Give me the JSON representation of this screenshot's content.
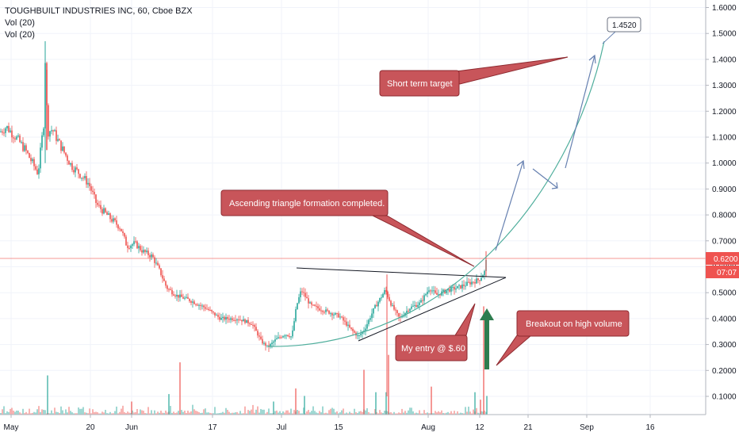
{
  "legend": {
    "symbol": "TOUGHBUILT INDUSTRIES INC, 60, Cboe BZX",
    "vol1": "Vol (20)",
    "vol2": "Vol (20)"
  },
  "price_label": {
    "value": "0.6200",
    "countdown": "07:07",
    "color": "#ef5350"
  },
  "colors": {
    "up": "#26a69a",
    "down": "#ef5350",
    "note_bg": "#c8555a",
    "note_border": "#8e2a30",
    "arrow": "#6680b0",
    "curve": "#4fae9c"
  },
  "chart_data": {
    "type": "candlestick",
    "y_ticks": [
      "1.6000",
      "1.5000",
      "1.4000",
      "1.3000",
      "1.2000",
      "1.1000",
      "1.0000",
      "0.9000",
      "0.8000",
      "0.7000",
      "0.6000",
      "0.5000",
      "0.4000",
      "0.3000",
      "0.2000",
      "0.1000"
    ],
    "x_ticks": [
      "May",
      "20",
      "Jun",
      "17",
      "Jul",
      "15",
      "Aug",
      "12",
      "21",
      "Sep",
      "16"
    ],
    "current_price": 0.62,
    "path_points": [
      [
        0,
        1.12
      ],
      [
        8,
        1.14
      ],
      [
        20,
        1.1
      ],
      [
        32,
        1.05
      ],
      [
        48,
        0.96
      ],
      [
        56,
        1.18
      ],
      [
        57,
        1.4
      ],
      [
        60,
        1.12
      ],
      [
        66,
        1.13
      ],
      [
        74,
        1.08
      ],
      [
        90,
        0.99
      ],
      [
        100,
        0.96
      ],
      [
        112,
        0.92
      ],
      [
        122,
        0.84
      ],
      [
        138,
        0.79
      ],
      [
        152,
        0.75
      ],
      [
        160,
        0.68
      ],
      [
        170,
        0.69
      ],
      [
        180,
        0.66
      ],
      [
        192,
        0.64
      ],
      [
        202,
        0.58
      ],
      [
        210,
        0.52
      ],
      [
        222,
        0.49
      ],
      [
        240,
        0.47
      ],
      [
        260,
        0.44
      ],
      [
        278,
        0.4
      ],
      [
        300,
        0.4
      ],
      [
        318,
        0.38
      ],
      [
        330,
        0.31
      ],
      [
        338,
        0.29
      ],
      [
        348,
        0.32
      ],
      [
        360,
        0.34
      ],
      [
        368,
        0.33
      ],
      [
        374,
        0.45
      ],
      [
        380,
        0.51
      ],
      [
        392,
        0.45
      ],
      [
        410,
        0.43
      ],
      [
        428,
        0.41
      ],
      [
        442,
        0.36
      ],
      [
        452,
        0.33
      ],
      [
        460,
        0.36
      ],
      [
        472,
        0.44
      ],
      [
        486,
        0.51
      ],
      [
        494,
        0.45
      ],
      [
        504,
        0.4
      ],
      [
        516,
        0.44
      ],
      [
        530,
        0.46
      ],
      [
        542,
        0.52
      ],
      [
        550,
        0.49
      ],
      [
        564,
        0.51
      ],
      [
        578,
        0.52
      ],
      [
        594,
        0.54
      ],
      [
        604,
        0.55
      ],
      [
        611,
        0.58
      ],
      [
        613,
        0.62
      ]
    ],
    "volume_bars": [
      [
        60,
        0.21
      ],
      [
        227,
        0.28
      ],
      [
        213,
        0.11
      ],
      [
        166,
        0.07
      ],
      [
        345,
        0.07
      ],
      [
        373,
        0.14
      ],
      [
        384,
        0.1
      ],
      [
        459,
        0.24
      ],
      [
        474,
        0.12
      ],
      [
        490,
        0.32
      ],
      [
        487,
        0.12
      ],
      [
        544,
        0.15
      ],
      [
        599,
        0.12
      ],
      [
        606,
        0.08
      ],
      [
        614,
        0.1
      ],
      [
        610,
        0.58
      ]
    ],
    "annotations": [
      {
        "text": "Ascending triangle formation completed."
      },
      {
        "text": "Short term target"
      },
      {
        "text": "My entry @ $.60"
      },
      {
        "text": "Breakout on high volume"
      },
      {
        "text": "1.4520"
      }
    ]
  }
}
